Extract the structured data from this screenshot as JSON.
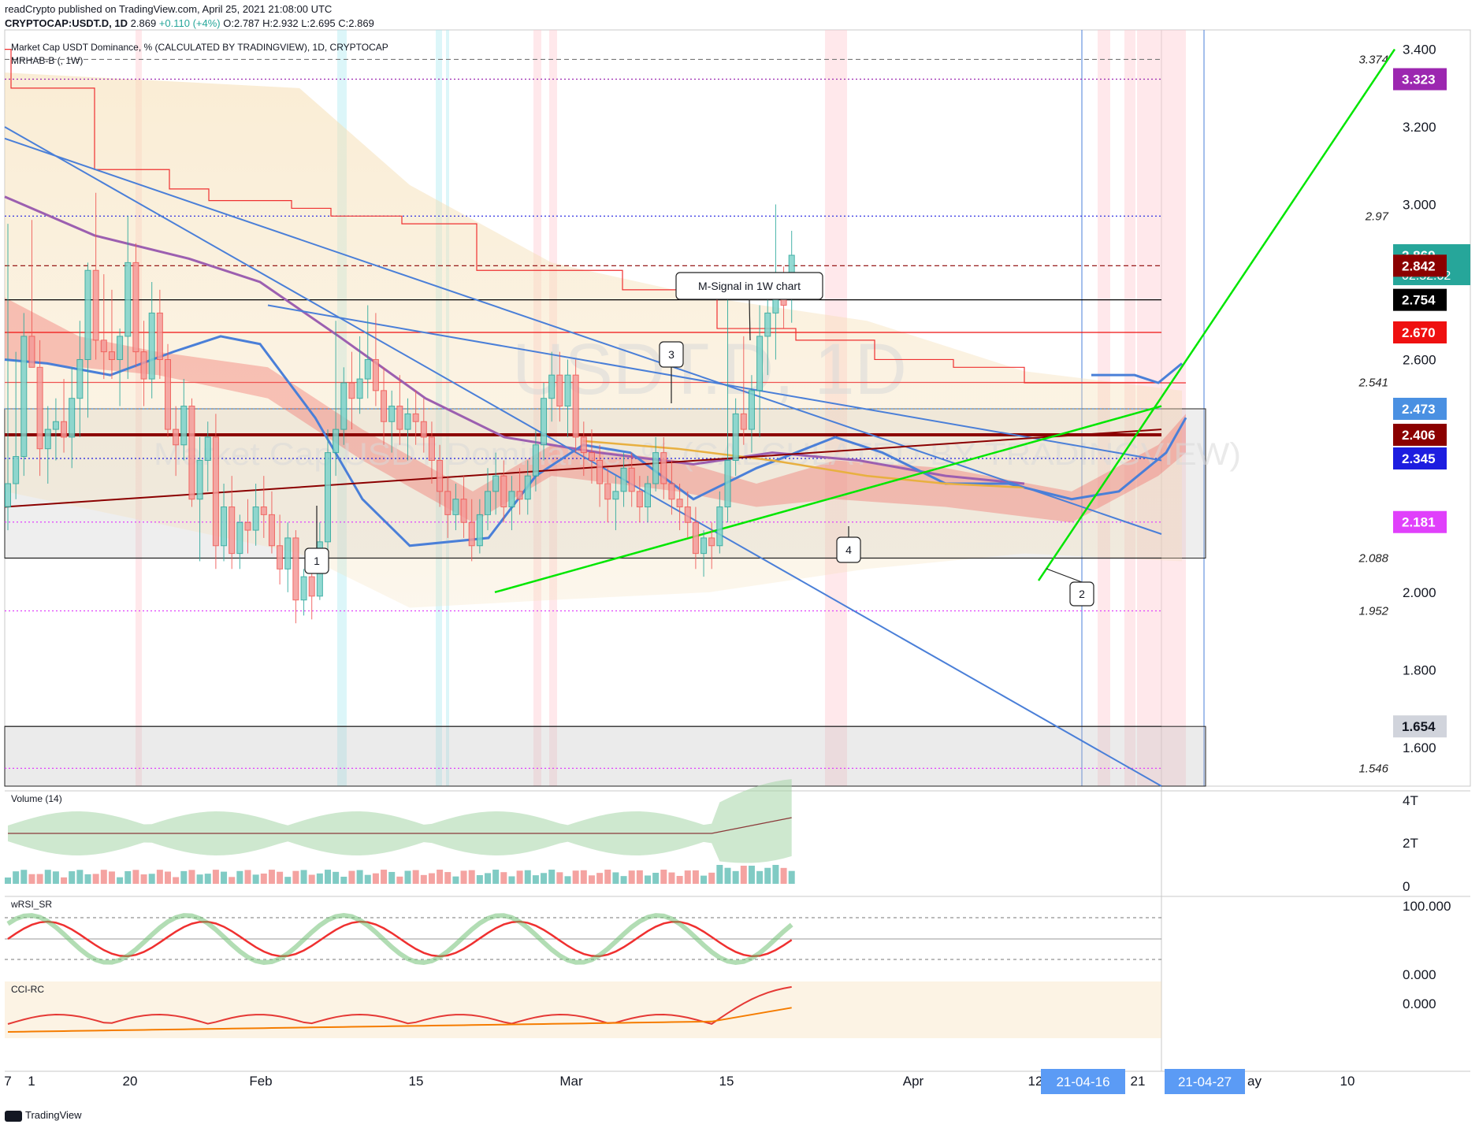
{
  "header": {
    "line1": "readCrypto published on TradingView.com, April 25, 2021 21:08:00 UTC",
    "symbol": "CRYPTOCAP:USDT.D, 1D",
    "last": "2.869",
    "change": "+0.110 (+4%)",
    "ohlc": "O:2.787 H:2.932 L:2.695 C:2.869"
  },
  "chart_title": "Market Cap USDT Dominance, % (CALCULATED BY TRADINGVIEW), 1D, CRYPTOCAP",
  "indicator_title": "MRHAB-B (, 1W)",
  "watermark": {
    "symbol": "USDT.D, 1D",
    "name": "Market Cap USDT Dominance, % (CALCULATED BY TRADINGVIEW)"
  },
  "footer": {
    "brand": "TradingView"
  },
  "colors": {
    "up": "#26a69a",
    "down": "#ef5350",
    "trend_green": "#00e600",
    "trend_blue": "#4a7fd8",
    "dark_red": "#8b0000",
    "magenta": "#e040fb",
    "purple_label": "#9c27b0"
  },
  "chart_data": {
    "type": "candlestick",
    "title": "Market Cap USDT Dominance, % (CALCULATED BY TRADINGVIEW), 1D, CRYPTOCAP",
    "interval": "1D",
    "ylim": [
      1.5,
      3.45
    ],
    "y_ticks": [
      3.4,
      3.2,
      3.0,
      2.8,
      2.6,
      2.4,
      2.2,
      2.0,
      1.8,
      1.6
    ],
    "y_tick_labels": [
      "3.400",
      "3.200",
      "3.000",
      "",
      "2.600",
      "",
      "",
      "2.000",
      "1.800",
      "1.600"
    ],
    "x_labels": [
      "7",
      "1",
      "20",
      "Feb",
      "15",
      "Mar",
      "15",
      "Apr",
      "12",
      "21",
      "ay",
      "10"
    ],
    "x_tag_labels": [
      "21-04-16",
      "21-04-27"
    ],
    "candles": [
      {
        "o": 2.22,
        "h": 2.95,
        "l": 2.16,
        "c": 2.28
      },
      {
        "o": 2.28,
        "h": 2.62,
        "l": 2.24,
        "c": 2.35
      },
      {
        "o": 2.35,
        "h": 2.72,
        "l": 2.3,
        "c": 2.66
      },
      {
        "o": 2.66,
        "h": 2.96,
        "l": 2.58,
        "c": 2.58
      },
      {
        "o": 2.58,
        "h": 2.65,
        "l": 2.3,
        "c": 2.37
      },
      {
        "o": 2.37,
        "h": 2.48,
        "l": 2.28,
        "c": 2.42
      },
      {
        "o": 2.42,
        "h": 2.5,
        "l": 2.34,
        "c": 2.44
      },
      {
        "o": 2.44,
        "h": 2.55,
        "l": 2.36,
        "c": 2.4
      },
      {
        "o": 2.4,
        "h": 2.58,
        "l": 2.32,
        "c": 2.5
      },
      {
        "o": 2.5,
        "h": 2.7,
        "l": 2.4,
        "c": 2.6
      },
      {
        "o": 2.6,
        "h": 2.85,
        "l": 2.45,
        "c": 2.83
      },
      {
        "o": 2.83,
        "h": 3.03,
        "l": 2.6,
        "c": 2.65
      },
      {
        "o": 2.65,
        "h": 2.82,
        "l": 2.55,
        "c": 2.62
      },
      {
        "o": 2.62,
        "h": 2.78,
        "l": 2.55,
        "c": 2.6
      },
      {
        "o": 2.6,
        "h": 2.68,
        "l": 2.48,
        "c": 2.66
      },
      {
        "o": 2.66,
        "h": 2.97,
        "l": 2.55,
        "c": 2.85
      },
      {
        "o": 2.85,
        "h": 2.9,
        "l": 2.58,
        "c": 2.62
      },
      {
        "o": 2.62,
        "h": 2.7,
        "l": 2.48,
        "c": 2.55
      },
      {
        "o": 2.55,
        "h": 2.8,
        "l": 2.5,
        "c": 2.72
      },
      {
        "o": 2.72,
        "h": 2.78,
        "l": 2.55,
        "c": 2.6
      },
      {
        "o": 2.6,
        "h": 2.64,
        "l": 2.4,
        "c": 2.42
      },
      {
        "o": 2.42,
        "h": 2.48,
        "l": 2.3,
        "c": 2.38
      },
      {
        "o": 2.38,
        "h": 2.55,
        "l": 2.34,
        "c": 2.48
      },
      {
        "o": 2.48,
        "h": 2.5,
        "l": 2.22,
        "c": 2.24
      },
      {
        "o": 2.24,
        "h": 2.4,
        "l": 2.08,
        "c": 2.34
      },
      {
        "o": 2.34,
        "h": 2.44,
        "l": 2.26,
        "c": 2.4
      },
      {
        "o": 2.4,
        "h": 2.46,
        "l": 2.06,
        "c": 2.12
      },
      {
        "o": 2.12,
        "h": 2.28,
        "l": 2.08,
        "c": 2.22
      },
      {
        "o": 2.22,
        "h": 2.3,
        "l": 2.06,
        "c": 2.1
      },
      {
        "o": 2.1,
        "h": 2.2,
        "l": 2.06,
        "c": 2.18
      },
      {
        "o": 2.18,
        "h": 2.24,
        "l": 2.1,
        "c": 2.16
      },
      {
        "o": 2.16,
        "h": 2.28,
        "l": 2.12,
        "c": 2.22
      },
      {
        "o": 2.22,
        "h": 2.3,
        "l": 2.14,
        "c": 2.2
      },
      {
        "o": 2.2,
        "h": 2.26,
        "l": 2.1,
        "c": 2.12
      },
      {
        "o": 2.12,
        "h": 2.2,
        "l": 2.02,
        "c": 2.06
      },
      {
        "o": 2.06,
        "h": 2.18,
        "l": 2.0,
        "c": 2.14
      },
      {
        "o": 2.14,
        "h": 2.16,
        "l": 1.92,
        "c": 1.98
      },
      {
        "o": 1.98,
        "h": 2.06,
        "l": 1.94,
        "c": 2.04
      },
      {
        "o": 2.04,
        "h": 2.1,
        "l": 1.93,
        "c": 1.99
      },
      {
        "o": 1.99,
        "h": 2.18,
        "l": 1.98,
        "c": 2.13
      },
      {
        "o": 2.13,
        "h": 2.42,
        "l": 2.1,
        "c": 2.36
      },
      {
        "o": 2.36,
        "h": 2.7,
        "l": 2.3,
        "c": 2.42
      },
      {
        "o": 2.42,
        "h": 2.58,
        "l": 2.38,
        "c": 2.54
      },
      {
        "o": 2.54,
        "h": 2.62,
        "l": 2.42,
        "c": 2.5
      },
      {
        "o": 2.5,
        "h": 2.66,
        "l": 2.46,
        "c": 2.55
      },
      {
        "o": 2.55,
        "h": 2.74,
        "l": 2.5,
        "c": 2.6
      },
      {
        "o": 2.6,
        "h": 2.72,
        "l": 2.48,
        "c": 2.52
      },
      {
        "o": 2.52,
        "h": 2.58,
        "l": 2.38,
        "c": 2.44
      },
      {
        "o": 2.44,
        "h": 2.52,
        "l": 2.36,
        "c": 2.48
      },
      {
        "o": 2.48,
        "h": 2.56,
        "l": 2.38,
        "c": 2.42
      },
      {
        "o": 2.42,
        "h": 2.5,
        "l": 2.34,
        "c": 2.46
      },
      {
        "o": 2.46,
        "h": 2.52,
        "l": 2.38,
        "c": 2.44
      },
      {
        "o": 2.44,
        "h": 2.5,
        "l": 2.36,
        "c": 2.4
      },
      {
        "o": 2.4,
        "h": 2.44,
        "l": 2.28,
        "c": 2.34
      },
      {
        "o": 2.34,
        "h": 2.38,
        "l": 2.22,
        "c": 2.26
      },
      {
        "o": 2.26,
        "h": 2.3,
        "l": 2.14,
        "c": 2.2
      },
      {
        "o": 2.2,
        "h": 2.28,
        "l": 2.16,
        "c": 2.24
      },
      {
        "o": 2.24,
        "h": 2.3,
        "l": 2.14,
        "c": 2.18
      },
      {
        "o": 2.18,
        "h": 2.24,
        "l": 2.08,
        "c": 2.12
      },
      {
        "o": 2.12,
        "h": 2.24,
        "l": 2.1,
        "c": 2.2
      },
      {
        "o": 2.2,
        "h": 2.32,
        "l": 2.16,
        "c": 2.26
      },
      {
        "o": 2.26,
        "h": 2.36,
        "l": 2.2,
        "c": 2.3
      },
      {
        "o": 2.3,
        "h": 2.34,
        "l": 2.18,
        "c": 2.22
      },
      {
        "o": 2.22,
        "h": 2.3,
        "l": 2.16,
        "c": 2.26
      },
      {
        "o": 2.26,
        "h": 2.32,
        "l": 2.2,
        "c": 2.24
      },
      {
        "o": 2.24,
        "h": 2.34,
        "l": 2.2,
        "c": 2.3
      },
      {
        "o": 2.3,
        "h": 2.42,
        "l": 2.26,
        "c": 2.38
      },
      {
        "o": 2.38,
        "h": 2.54,
        "l": 2.34,
        "c": 2.5
      },
      {
        "o": 2.5,
        "h": 2.62,
        "l": 2.44,
        "c": 2.56
      },
      {
        "o": 2.56,
        "h": 2.62,
        "l": 2.44,
        "c": 2.48
      },
      {
        "o": 2.48,
        "h": 2.6,
        "l": 2.4,
        "c": 2.56
      },
      {
        "o": 2.56,
        "h": 2.6,
        "l": 2.36,
        "c": 2.4
      },
      {
        "o": 2.4,
        "h": 2.44,
        "l": 2.3,
        "c": 2.36
      },
      {
        "o": 2.36,
        "h": 2.42,
        "l": 2.28,
        "c": 2.34
      },
      {
        "o": 2.34,
        "h": 2.38,
        "l": 2.22,
        "c": 2.28
      },
      {
        "o": 2.28,
        "h": 2.32,
        "l": 2.18,
        "c": 2.24
      },
      {
        "o": 2.24,
        "h": 2.3,
        "l": 2.16,
        "c": 2.26
      },
      {
        "o": 2.26,
        "h": 2.36,
        "l": 2.22,
        "c": 2.32
      },
      {
        "o": 2.32,
        "h": 2.36,
        "l": 2.22,
        "c": 2.26
      },
      {
        "o": 2.26,
        "h": 2.3,
        "l": 2.18,
        "c": 2.22
      },
      {
        "o": 2.22,
        "h": 2.3,
        "l": 2.18,
        "c": 2.28
      },
      {
        "o": 2.28,
        "h": 2.4,
        "l": 2.26,
        "c": 2.36
      },
      {
        "o": 2.36,
        "h": 2.4,
        "l": 2.24,
        "c": 2.28
      },
      {
        "o": 2.28,
        "h": 2.34,
        "l": 2.2,
        "c": 2.24
      },
      {
        "o": 2.24,
        "h": 2.28,
        "l": 2.16,
        "c": 2.22
      },
      {
        "o": 2.22,
        "h": 2.26,
        "l": 2.14,
        "c": 2.18
      },
      {
        "o": 2.18,
        "h": 2.22,
        "l": 2.06,
        "c": 2.1
      },
      {
        "o": 2.1,
        "h": 2.16,
        "l": 2.04,
        "c": 2.14
      },
      {
        "o": 2.14,
        "h": 2.18,
        "l": 2.06,
        "c": 2.12
      },
      {
        "o": 2.12,
        "h": 2.26,
        "l": 2.1,
        "c": 2.22
      },
      {
        "o": 2.22,
        "h": 2.76,
        "l": 2.18,
        "c": 2.34
      },
      {
        "o": 2.34,
        "h": 2.5,
        "l": 2.3,
        "c": 2.46
      },
      {
        "o": 2.46,
        "h": 2.66,
        "l": 2.38,
        "c": 2.42
      },
      {
        "o": 2.42,
        "h": 2.56,
        "l": 2.36,
        "c": 2.52
      },
      {
        "o": 2.52,
        "h": 2.74,
        "l": 2.4,
        "c": 2.66
      },
      {
        "o": 2.66,
        "h": 2.78,
        "l": 2.56,
        "c": 2.72
      },
      {
        "o": 2.72,
        "h": 3.0,
        "l": 2.6,
        "c": 2.78
      },
      {
        "o": 2.78,
        "h": 2.84,
        "l": 2.68,
        "c": 2.74
      },
      {
        "o": 2.787,
        "h": 2.932,
        "l": 2.695,
        "c": 2.869
      }
    ],
    "horizontal_levels": [
      {
        "value": 3.374,
        "label": "3.374"
      },
      {
        "value": 3.323,
        "label": "3.323"
      },
      {
        "value": 2.97,
        "label": "2.97"
      },
      {
        "value": 2.842,
        "label": "2.842"
      },
      {
        "value": 2.754,
        "label": "2.754"
      },
      {
        "value": 2.67,
        "label": "2.670"
      },
      {
        "value": 2.541,
        "label": "2.541"
      },
      {
        "value": 2.473,
        "label": "2.473"
      },
      {
        "value": 2.406,
        "label": "2.406"
      },
      {
        "value": 2.345,
        "label": "2.345"
      },
      {
        "value": 2.181,
        "label": "2.181"
      },
      {
        "value": 2.088,
        "label": "2.088"
      },
      {
        "value": 1.952,
        "label": "1.952"
      },
      {
        "value": 1.654,
        "label": "1.654"
      },
      {
        "value": 1.546,
        "label": "1.546"
      }
    ],
    "price_labels": [
      {
        "value": 3.323,
        "label": "3.323",
        "bg": "#9c27b0"
      },
      {
        "value": 2.869,
        "label": "2.869",
        "sub": "02:52:02",
        "bg": "#26a69a"
      },
      {
        "value": 2.842,
        "label": "2.842",
        "bg": "#8b0000"
      },
      {
        "value": 2.754,
        "label": "2.754",
        "bg": "#000000"
      },
      {
        "value": 2.67,
        "label": "2.670",
        "bg": "#ef1010"
      },
      {
        "value": 2.473,
        "label": "2.473",
        "bg": "#4a90e2"
      },
      {
        "value": 2.406,
        "label": "2.406",
        "bg": "#8b0000"
      },
      {
        "value": 2.345,
        "label": "2.345",
        "bg": "#1d1de0"
      },
      {
        "value": 2.181,
        "label": "2.181",
        "bg": "#e040fb"
      },
      {
        "value": 1.654,
        "label": "1.654",
        "bg": "#d1d4dc",
        "fg": "#131722"
      }
    ],
    "annotations": [
      "M-Signal in 1W chart",
      "1",
      "2",
      "3",
      "4"
    ],
    "panes": {
      "volume": {
        "title": "Volume (14)",
        "y_labels": [
          "4T",
          "2T",
          "0"
        ]
      },
      "wrsi": {
        "title": "wRSI_SR",
        "y_labels": [
          "100.000",
          "0.000"
        ]
      },
      "cci": {
        "title": "CCI-RC",
        "y_labels": [
          "0.000"
        ]
      }
    }
  }
}
